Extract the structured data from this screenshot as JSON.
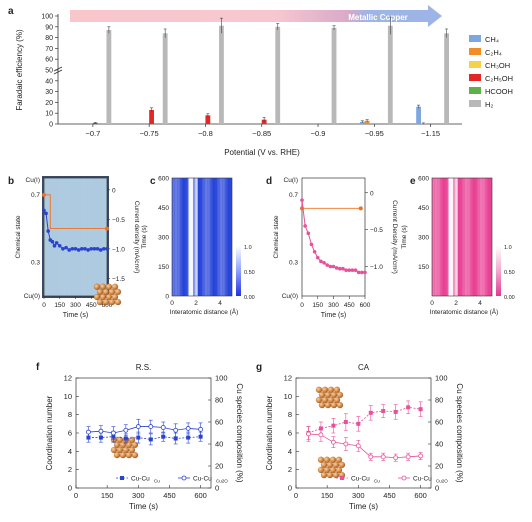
{
  "panel_letters": {
    "a": "a",
    "b": "b",
    "c": "c",
    "d": "d",
    "e": "e",
    "f": "f",
    "g": "g"
  },
  "colors": {
    "CH4": "#7da7e0",
    "C2H4": "#f28c28",
    "CH3OH": "#f6d24b",
    "C2H5OH": "#e32626",
    "HCOOH": "#5fb048",
    "H2": "#b8b8b8",
    "blue_marker": "#2a43d0",
    "pink_marker": "#e8509a",
    "orange_marker": "#f07020"
  },
  "chart_data": [
    {
      "id": "a",
      "type": "bar",
      "banner": "Metallic Copper",
      "xlabel": "Potential (V vs. RHE)",
      "ylabel": "Faradaic efficiency (%)",
      "categories": [
        "−0.7",
        "−0.75",
        "−0.8",
        "−0.85",
        "−0.9",
        "−0.95",
        "−1.15"
      ],
      "yticks": [
        "0",
        "10",
        "20",
        "30",
        "40",
        "50",
        "60",
        "70",
        "80",
        "90",
        "100"
      ],
      "ylim": [
        0,
        100
      ],
      "series": [
        {
          "name": "CH₄",
          "color_key": "CH4",
          "values": [
            0,
            0,
            0,
            0,
            0,
            2,
            16
          ],
          "err": [
            0,
            0,
            0,
            0,
            0,
            1,
            1.5
          ]
        },
        {
          "name": "C₂H₄",
          "color_key": "C2H4",
          "values": [
            0,
            0,
            0,
            0,
            0,
            3,
            0.5
          ],
          "err": [
            0,
            0,
            0,
            0,
            0,
            1,
            0.5
          ]
        },
        {
          "name": "CH₃OH",
          "color_key": "CH3OH",
          "values": [
            0,
            0,
            0,
            0,
            0,
            0,
            0
          ],
          "err": [
            0,
            0,
            0,
            0,
            0,
            0,
            0
          ]
        },
        {
          "name": "C₂H₅OH",
          "color_key": "C2H5OH",
          "values": [
            1,
            13,
            8,
            4,
            0,
            0,
            0
          ],
          "err": [
            0.5,
            2,
            1.5,
            2,
            0,
            0,
            0
          ]
        },
        {
          "name": "HCOOH",
          "color_key": "HCOOH",
          "values": [
            0,
            0,
            0,
            0,
            0,
            0,
            0
          ],
          "err": [
            0,
            0,
            0,
            0,
            0,
            0,
            0
          ]
        },
        {
          "name": "H₂",
          "color_key": "H2",
          "values": [
            87,
            84,
            91,
            90,
            89,
            91,
            84
          ],
          "err": [
            3,
            4,
            7,
            3,
            2,
            8,
            4
          ]
        }
      ]
    },
    {
      "id": "b",
      "type": "line",
      "top_label": "Cu(I)",
      "bottom_label": "Cu(0)",
      "ylabel_left": "Chemical state",
      "ylabel_right": "Current density (mA/cm²)",
      "xlabel": "Time (s)",
      "xticks": [
        "0",
        "150",
        "300",
        "450",
        "600"
      ],
      "xlim": [
        0,
        600
      ],
      "left_ticks": [
        "0.7",
        "0.3"
      ],
      "right_ticks": [
        "0",
        "−0.5",
        "−1.0",
        "−1.5"
      ],
      "current_ylim": [
        -1.8,
        0.2
      ],
      "current": {
        "x": [
          0,
          20,
          40,
          60,
          80,
          100,
          120,
          150,
          180,
          210,
          240,
          270,
          300,
          330,
          360,
          390,
          420,
          450,
          480,
          510,
          540,
          570,
          600
        ],
        "y": [
          -0.35,
          -0.4,
          -0.7,
          -0.85,
          -0.88,
          -0.95,
          -0.9,
          -0.95,
          -1.0,
          -0.98,
          -1.02,
          -1.0,
          -1.0,
          -1.02,
          -1.0,
          -1.0,
          -1.02,
          -1.0,
          -1.0,
          -1.0,
          -1.02,
          -1.0,
          -1.0
        ]
      },
      "state_step": {
        "x": [
          0,
          60,
          60,
          600
        ],
        "y": [
          0.7,
          0.7,
          0.5,
          0.5
        ]
      }
    },
    {
      "id": "c",
      "type": "heatmap",
      "xlabel": "Interatomic distance (Å)",
      "ylabel": "Time (s)",
      "xticks": [
        "0",
        "2",
        "4"
      ],
      "yticks": [
        "0",
        "150",
        "300",
        "450",
        "600"
      ],
      "colorbar_ticks": [
        "1.0",
        "0.50",
        "0.00"
      ],
      "palette": "blue"
    },
    {
      "id": "d",
      "type": "line",
      "top_label": "Cu(I)",
      "bottom_label": "Cu(0)",
      "ylabel_left": "Chemical state",
      "ylabel_right": "Current Density (mA/cm²)",
      "xlabel": "Time (s)",
      "xticks": [
        "0",
        "150",
        "300",
        "450",
        "600"
      ],
      "xlim": [
        0,
        600
      ],
      "left_ticks": [
        "0.7",
        "0.3"
      ],
      "right_ticks": [
        "0",
        "−0.5",
        "−1.0"
      ],
      "current_ylim": [
        -1.4,
        0.2
      ],
      "current": {
        "x": [
          0,
          30,
          60,
          90,
          120,
          150,
          180,
          210,
          240,
          270,
          300,
          330,
          360,
          390,
          420,
          450,
          480,
          510,
          540,
          570,
          600
        ],
        "y": [
          -0.1,
          -0.45,
          -0.55,
          -0.7,
          -0.8,
          -0.88,
          -0.93,
          -0.95,
          -0.98,
          -1.0,
          -1.0,
          -1.02,
          -1.03,
          -1.03,
          -1.05,
          -1.05,
          -1.05,
          -1.05,
          -1.08,
          -1.08,
          -1.08
        ]
      },
      "state_step": {
        "x": [
          0,
          560
        ],
        "y": [
          0.62,
          0.62
        ]
      },
      "state_end": {
        "x": [
          560,
          600
        ],
        "y": [
          0.62,
          0.62
        ]
      }
    },
    {
      "id": "e",
      "type": "heatmap",
      "xlabel": "Interatomic distance (Å)",
      "ylabel": "Time (s)",
      "xticks": [
        "0",
        "2",
        "4"
      ],
      "yticks": [
        "150",
        "300",
        "450",
        "600"
      ],
      "colorbar_ticks": [
        "1.0",
        "0.50",
        "0.00"
      ],
      "palette": "pink"
    },
    {
      "id": "f",
      "type": "line",
      "title": "R.S.",
      "xlabel": "Time (s)",
      "ylabel": "Coordination number",
      "ylabel_right": "Cu species composition (%)",
      "xticks": [
        "0",
        "150",
        "300",
        "450",
        "600"
      ],
      "xlim": [
        0,
        650
      ],
      "yticks": [
        "0",
        "2",
        "4",
        "6",
        "8",
        "10",
        "12"
      ],
      "ylim": [
        0,
        12
      ],
      "right_ticks": [
        "0",
        "20",
        "40",
        "60",
        "80",
        "100"
      ],
      "series": [
        {
          "name": "Cu-Cu",
          "sub": "Cu",
          "x": [
            60,
            120,
            180,
            240,
            300,
            360,
            420,
            480,
            540,
            600
          ],
          "y": [
            5.5,
            5.5,
            5.6,
            5.4,
            5.5,
            5.3,
            5.6,
            5.4,
            5.5,
            5.6
          ],
          "err": [
            0.5,
            0.5,
            0.6,
            0.5,
            0.6,
            0.6,
            0.5,
            0.6,
            0.6,
            0.5
          ],
          "style": "filled"
        },
        {
          "name": "Cu-Cu",
          "sub": "Cu2O",
          "x": [
            60,
            120,
            180,
            240,
            300,
            360,
            420,
            480,
            540,
            600
          ],
          "y": [
            6.1,
            6.2,
            6.0,
            6.3,
            6.7,
            6.7,
            6.6,
            6.3,
            6.5,
            6.4
          ],
          "err": [
            0.6,
            0.6,
            0.7,
            0.6,
            0.8,
            0.7,
            0.6,
            0.7,
            0.6,
            0.7
          ],
          "style": "open"
        }
      ]
    },
    {
      "id": "g",
      "type": "line",
      "title": "CA",
      "xlabel": "Time (s)",
      "ylabel": "Coordination number",
      "ylabel_right": "Cu species composition (%)",
      "xticks": [
        "0",
        "150",
        "300",
        "450",
        "600"
      ],
      "xlim": [
        0,
        650
      ],
      "yticks": [
        "0",
        "2",
        "4",
        "6",
        "8",
        "10",
        "12"
      ],
      "ylim": [
        0,
        12
      ],
      "right_ticks": [
        "0",
        "20",
        "40",
        "60",
        "80",
        "100"
      ],
      "series": [
        {
          "name": "Cu-Cu",
          "sub": "Cu",
          "x": [
            60,
            120,
            180,
            240,
            300,
            360,
            420,
            480,
            540,
            600
          ],
          "y": [
            6.0,
            6.5,
            6.8,
            7.2,
            7.0,
            8.2,
            8.4,
            8.3,
            8.8,
            8.6
          ],
          "err": [
            0.7,
            0.7,
            0.8,
            0.9,
            0.8,
            0.8,
            0.7,
            0.8,
            0.7,
            0.8
          ],
          "style": "filled"
        },
        {
          "name": "Cu-Cu",
          "sub": "Cu2O",
          "x": [
            60,
            120,
            180,
            240,
            300,
            360,
            420,
            480,
            540,
            600
          ],
          "y": [
            5.9,
            5.8,
            5.0,
            4.8,
            4.6,
            3.4,
            3.4,
            3.3,
            3.4,
            3.5
          ],
          "err": [
            0.8,
            0.7,
            0.6,
            0.7,
            0.6,
            0.4,
            0.4,
            0.4,
            0.4,
            0.4
          ],
          "style": "open"
        }
      ]
    }
  ]
}
